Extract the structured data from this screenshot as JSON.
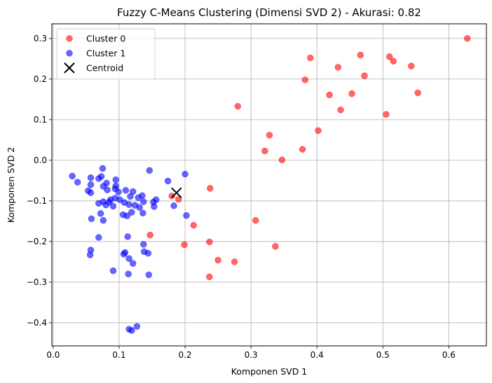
{
  "chart_data": {
    "type": "scatter",
    "title": "Fuzzy C-Means Clustering (Dimensi SVD 2) - Akurasi: 0.82",
    "xlabel": "Komponen SVD 1",
    "ylabel": "Komponen SVD 2",
    "xlim": [
      -0.002,
      0.657
    ],
    "ylim": [
      -0.457,
      0.336
    ],
    "xticks": [
      0.0,
      0.1,
      0.2,
      0.3,
      0.4,
      0.5,
      0.6
    ],
    "xtick_labels": [
      "0.0",
      "0.1",
      "0.2",
      "0.3",
      "0.4",
      "0.5",
      "0.6"
    ],
    "yticks": [
      -0.4,
      -0.3,
      -0.2,
      -0.1,
      0.0,
      0.1,
      0.2,
      0.3
    ],
    "ytick_labels": [
      "−0.4",
      "−0.3",
      "−0.2",
      "−0.1",
      "0.0",
      "0.1",
      "0.2",
      "0.3"
    ],
    "grid": true,
    "legend_position": "top-left",
    "series": [
      {
        "name": "Cluster 0",
        "color": "#ff0000",
        "marker": "circle",
        "points": [
          [
            0.628,
            0.3
          ],
          [
            0.466,
            0.259
          ],
          [
            0.51,
            0.255
          ],
          [
            0.39,
            0.252
          ],
          [
            0.516,
            0.244
          ],
          [
            0.543,
            0.232
          ],
          [
            0.432,
            0.229
          ],
          [
            0.472,
            0.208
          ],
          [
            0.382,
            0.198
          ],
          [
            0.553,
            0.166
          ],
          [
            0.453,
            0.164
          ],
          [
            0.419,
            0.161
          ],
          [
            0.28,
            0.133
          ],
          [
            0.436,
            0.124
          ],
          [
            0.505,
            0.113
          ],
          [
            0.402,
            0.073
          ],
          [
            0.328,
            0.062
          ],
          [
            0.378,
            0.027
          ],
          [
            0.321,
            0.023
          ],
          [
            0.347,
            0.001
          ],
          [
            0.238,
            -0.069
          ],
          [
            0.18,
            -0.088
          ],
          [
            0.19,
            -0.096
          ],
          [
            0.307,
            -0.148
          ],
          [
            0.213,
            -0.16
          ],
          [
            0.147,
            -0.184
          ],
          [
            0.237,
            -0.201
          ],
          [
            0.199,
            -0.208
          ],
          [
            0.337,
            -0.212
          ],
          [
            0.25,
            -0.246
          ],
          [
            0.275,
            -0.25
          ],
          [
            0.237,
            -0.287
          ]
        ]
      },
      {
        "name": "Cluster 1",
        "color": "#0000ff",
        "marker": "circle",
        "points": [
          [
            0.075,
            -0.02
          ],
          [
            0.146,
            -0.025
          ],
          [
            0.2,
            -0.034
          ],
          [
            0.029,
            -0.039
          ],
          [
            0.057,
            -0.043
          ],
          [
            0.069,
            -0.045
          ],
          [
            0.073,
            -0.04
          ],
          [
            0.095,
            -0.048
          ],
          [
            0.037,
            -0.054
          ],
          [
            0.174,
            -0.051
          ],
          [
            0.081,
            -0.056
          ],
          [
            0.057,
            -0.06
          ],
          [
            0.076,
            -0.064
          ],
          [
            0.095,
            -0.063
          ],
          [
            0.094,
            -0.07
          ],
          [
            0.053,
            -0.075
          ],
          [
            0.082,
            -0.073
          ],
          [
            0.099,
            -0.078
          ],
          [
            0.057,
            -0.08
          ],
          [
            0.11,
            -0.074
          ],
          [
            0.121,
            -0.077
          ],
          [
            0.117,
            -0.089
          ],
          [
            0.129,
            -0.092
          ],
          [
            0.135,
            -0.087
          ],
          [
            0.094,
            -0.093
          ],
          [
            0.087,
            -0.097
          ],
          [
            0.156,
            -0.097
          ],
          [
            0.101,
            -0.097
          ],
          [
            0.076,
            -0.102
          ],
          [
            0.085,
            -0.103
          ],
          [
            0.069,
            -0.106
          ],
          [
            0.108,
            -0.104
          ],
          [
            0.137,
            -0.102
          ],
          [
            0.152,
            -0.103
          ],
          [
            0.08,
            -0.11
          ],
          [
            0.091,
            -0.113
          ],
          [
            0.124,
            -0.111
          ],
          [
            0.115,
            -0.109
          ],
          [
            0.153,
            -0.114
          ],
          [
            0.183,
            -0.112
          ],
          [
            0.131,
            -0.116
          ],
          [
            0.072,
            -0.131
          ],
          [
            0.106,
            -0.134
          ],
          [
            0.119,
            -0.128
          ],
          [
            0.136,
            -0.13
          ],
          [
            0.202,
            -0.136
          ],
          [
            0.058,
            -0.144
          ],
          [
            0.076,
            -0.148
          ],
          [
            0.112,
            -0.137
          ],
          [
            0.113,
            -0.188
          ],
          [
            0.069,
            -0.19
          ],
          [
            0.137,
            -0.207
          ],
          [
            0.057,
            -0.221
          ],
          [
            0.109,
            -0.227
          ],
          [
            0.107,
            -0.231
          ],
          [
            0.144,
            -0.229
          ],
          [
            0.138,
            -0.225
          ],
          [
            0.056,
            -0.233
          ],
          [
            0.115,
            -0.242
          ],
          [
            0.121,
            -0.254
          ],
          [
            0.091,
            -0.272
          ],
          [
            0.114,
            -0.28
          ],
          [
            0.145,
            -0.282
          ],
          [
            0.127,
            -0.409
          ],
          [
            0.115,
            -0.416
          ],
          [
            0.119,
            -0.419
          ]
        ]
      },
      {
        "name": "Centroid",
        "color": "#000000",
        "marker": "x",
        "points": [
          [
            0.187,
            -0.08
          ]
        ]
      }
    ]
  }
}
